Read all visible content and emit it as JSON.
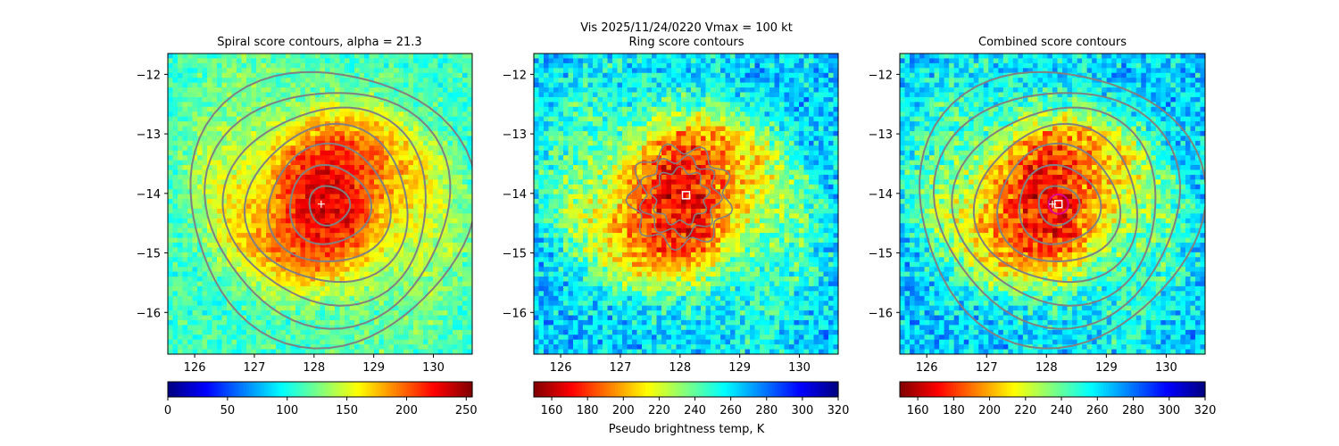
{
  "figure": {
    "suptitle_line1": "Vis  2025/11/24/0220    Vmax = 100 kt",
    "xlabel_center": "Pseudo brightness temp, K"
  },
  "chart_data": [
    {
      "type": "heatmap",
      "title": "Spiral score contours, alpha = 21.3",
      "colormap": "jet",
      "colormap_reversed": false,
      "xlim": [
        125.55,
        130.65
      ],
      "ylim": [
        -16.7,
        -11.65
      ],
      "xticks": [
        "126",
        "127",
        "128",
        "129",
        "130"
      ],
      "yticks": [
        "−12",
        "−13",
        "−14",
        "−15",
        "−16"
      ],
      "field": {
        "core_value": 230,
        "ambient_value": 110,
        "center": [
          128.2,
          -14.1
        ]
      },
      "contours": {
        "color": "#808080",
        "center": [
          128.25,
          -14.2
        ],
        "levels": 7
      },
      "marker": {
        "symbol": "plus",
        "position": [
          128.12,
          -14.18
        ],
        "color": "#ffffff"
      },
      "colorbar": {
        "vmin": 0,
        "vmax": 255,
        "ticks": [
          "0",
          "50",
          "100",
          "150",
          "200",
          "250"
        ],
        "label": ""
      }
    },
    {
      "type": "heatmap",
      "title": "Ring score contours",
      "colormap": "jet",
      "colormap_reversed": true,
      "xlim": [
        125.55,
        130.65
      ],
      "ylim": [
        -16.7,
        -11.65
      ],
      "xticks": [
        "126",
        "127",
        "128",
        "129",
        "130"
      ],
      "yticks": [
        "−12",
        "−13",
        "−14",
        "−15",
        "−16"
      ],
      "field": {
        "core_value": 170,
        "ambient_value": 265,
        "center": [
          128.0,
          -14.1
        ]
      },
      "contours": {
        "color": "#808080",
        "center": [
          128.0,
          -14.05
        ],
        "levels": 1
      },
      "marker": {
        "symbol": "square",
        "position": [
          128.1,
          -14.03
        ],
        "color": "#ffffff"
      },
      "colorbar": {
        "vmin": 150,
        "vmax": 320,
        "ticks": [
          "160",
          "180",
          "200",
          "220",
          "240",
          "260",
          "280",
          "300",
          "320"
        ],
        "label": "Pseudo brightness temp, K"
      }
    },
    {
      "type": "heatmap",
      "title": "Combined score contours",
      "colormap": "jet",
      "colormap_reversed": true,
      "xlim": [
        125.55,
        130.65
      ],
      "ylim": [
        -16.7,
        -11.65
      ],
      "xticks": [
        "126",
        "127",
        "128",
        "129",
        "130"
      ],
      "yticks": [
        "−12",
        "−13",
        "−14",
        "−15",
        "−16"
      ],
      "field": {
        "core_value": 170,
        "ambient_value": 265,
        "center": [
          128.0,
          -14.1
        ]
      },
      "contours": {
        "color": "#808080",
        "center": [
          128.2,
          -14.2
        ],
        "levels": 7
      },
      "marker": {
        "symbol": "square",
        "position": [
          128.2,
          -14.18
        ],
        "color": "#ffffff"
      },
      "marker2": {
        "symbol": "plus",
        "position": [
          128.1,
          -14.18
        ],
        "color": "#ffffff"
      },
      "circle": {
        "position": [
          128.2,
          -14.18
        ],
        "color": "#e0008c"
      },
      "colorbar": {
        "vmin": 150,
        "vmax": 320,
        "ticks": [
          "160",
          "180",
          "200",
          "220",
          "240",
          "260",
          "280",
          "300",
          "320"
        ],
        "label": ""
      }
    }
  ]
}
